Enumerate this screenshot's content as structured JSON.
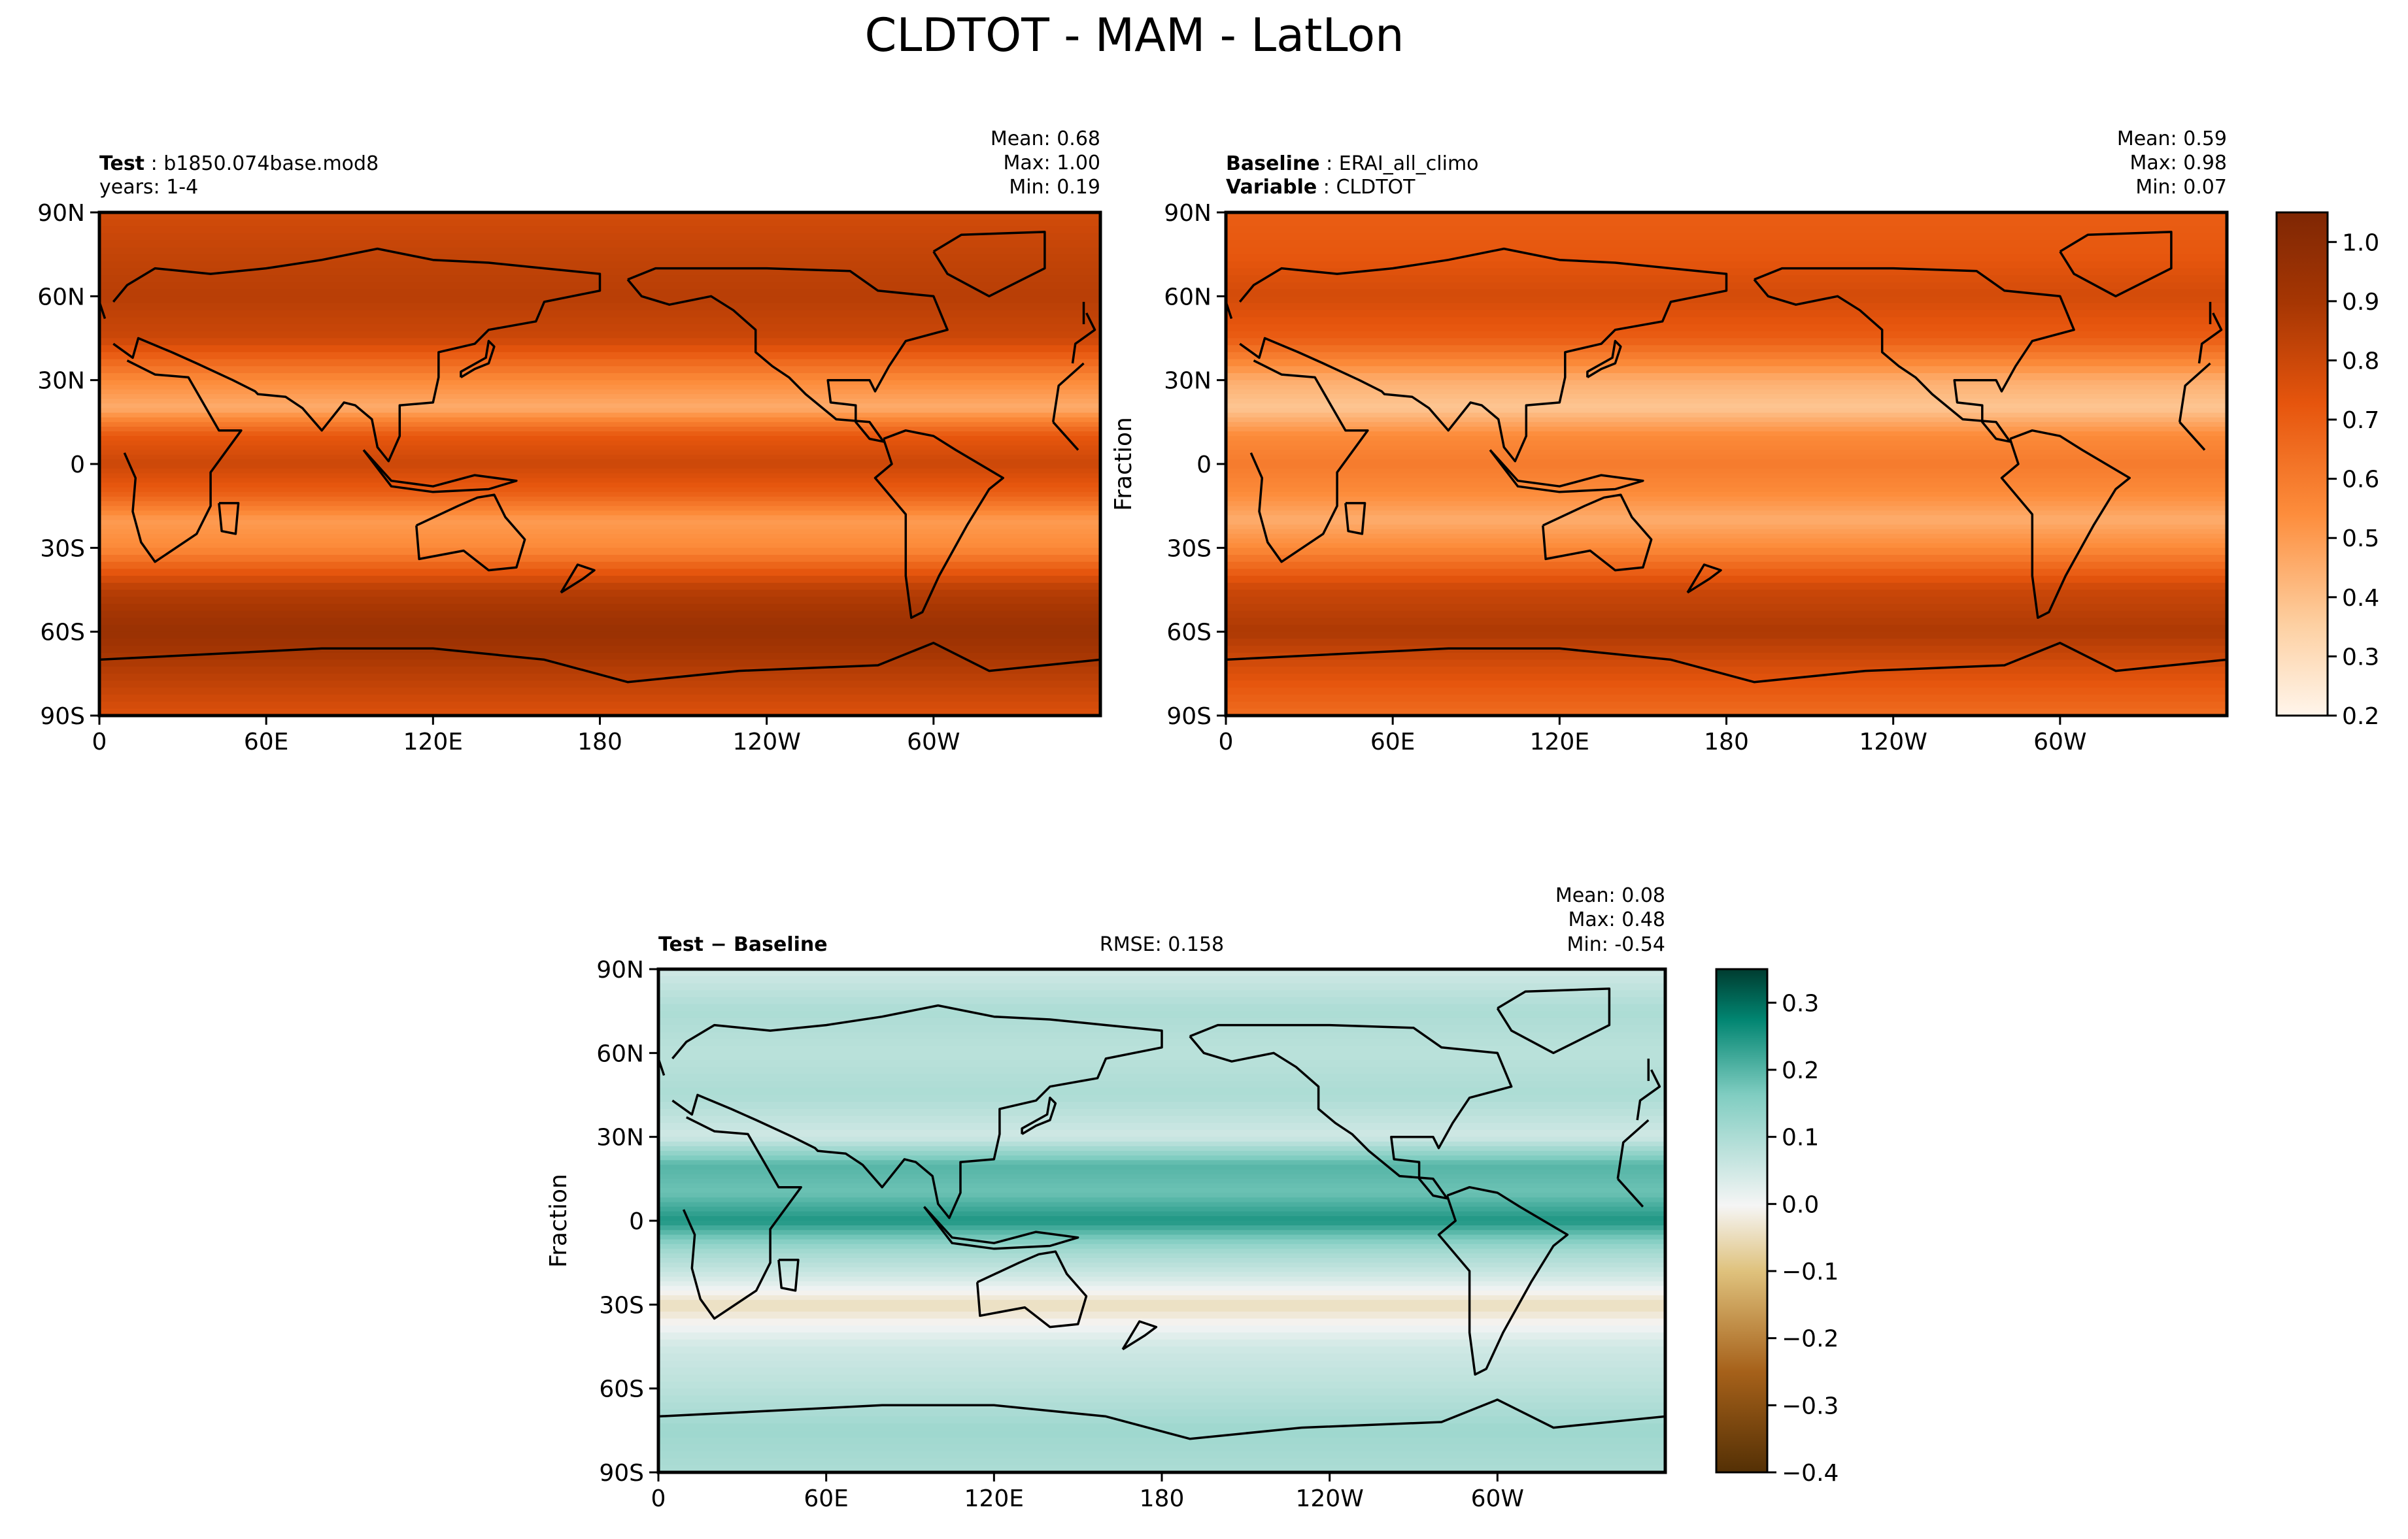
{
  "figure": {
    "title": "CLDTOT - MAM - LatLon"
  },
  "panels": {
    "test": {
      "left_title": "Test",
      "left_value": "b1850.074base.mod8",
      "left_line2": "years: 1-4",
      "stats": {
        "mean": "Mean:  0.68",
        "max": "Max:  1.00",
        "min": "Min:  0.19"
      }
    },
    "baseline": {
      "left_title": "Baseline",
      "left_value": "ERAI_all_climo",
      "left_title2": "Variable",
      "left_value2": "CLDTOT",
      "ylabel": "Fraction",
      "stats": {
        "mean": "Mean:  0.59",
        "max": "Max:  0.98",
        "min": "Min:  0.07"
      }
    },
    "diff": {
      "left_title": "Test − Baseline",
      "center_title": "RMSE: 0.158",
      "ylabel": "Fraction",
      "stats": {
        "mean": "Mean:  0.08",
        "max": "Max:  0.48",
        "min": "Min: -0.54"
      }
    }
  },
  "chart_data": [
    {
      "type": "heatmap",
      "name": "test",
      "x_ticks": [
        "0",
        "60E",
        "120E",
        "180",
        "120W",
        "60W"
      ],
      "y_ticks": [
        "90N",
        "60N",
        "30N",
        "0",
        "30S",
        "60S",
        "90S"
      ],
      "x_range": [
        0,
        360
      ],
      "y_range": [
        -90,
        90
      ],
      "colormap": "Oranges",
      "clim": [
        0.2,
        1.05
      ],
      "zonal_mean_profile": [
        {
          "lat": 90,
          "value": 0.78
        },
        {
          "lat": 75,
          "value": 0.82
        },
        {
          "lat": 60,
          "value": 0.85
        },
        {
          "lat": 45,
          "value": 0.8
        },
        {
          "lat": 30,
          "value": 0.55
        },
        {
          "lat": 20,
          "value": 0.45
        },
        {
          "lat": 10,
          "value": 0.72
        },
        {
          "lat": 0,
          "value": 0.8
        },
        {
          "lat": -10,
          "value": 0.7
        },
        {
          "lat": -20,
          "value": 0.5
        },
        {
          "lat": -30,
          "value": 0.55
        },
        {
          "lat": -45,
          "value": 0.85
        },
        {
          "lat": -60,
          "value": 0.95
        },
        {
          "lat": -75,
          "value": 0.85
        },
        {
          "lat": -90,
          "value": 0.75
        }
      ]
    },
    {
      "type": "heatmap",
      "name": "baseline",
      "x_ticks": [
        "0",
        "60E",
        "120E",
        "180",
        "120W",
        "60W"
      ],
      "y_ticks": [
        "90N",
        "60N",
        "30N",
        "0",
        "30S",
        "60S",
        "90S"
      ],
      "x_range": [
        0,
        360
      ],
      "y_range": [
        -90,
        90
      ],
      "colormap": "Oranges",
      "clim": [
        0.2,
        1.05
      ],
      "colorbar_ticks": [
        1.0,
        0.9,
        0.8,
        0.7,
        0.6,
        0.5,
        0.4,
        0.3,
        0.2
      ],
      "zonal_mean_profile": [
        {
          "lat": 90,
          "value": 0.7
        },
        {
          "lat": 75,
          "value": 0.72
        },
        {
          "lat": 60,
          "value": 0.78
        },
        {
          "lat": 45,
          "value": 0.7
        },
        {
          "lat": 30,
          "value": 0.45
        },
        {
          "lat": 20,
          "value": 0.38
        },
        {
          "lat": 10,
          "value": 0.55
        },
        {
          "lat": 0,
          "value": 0.6
        },
        {
          "lat": -10,
          "value": 0.55
        },
        {
          "lat": -20,
          "value": 0.45
        },
        {
          "lat": -30,
          "value": 0.55
        },
        {
          "lat": -45,
          "value": 0.8
        },
        {
          "lat": -60,
          "value": 0.88
        },
        {
          "lat": -75,
          "value": 0.75
        },
        {
          "lat": -90,
          "value": 0.65
        }
      ]
    },
    {
      "type": "heatmap",
      "name": "difference",
      "x_ticks": [
        "0",
        "60E",
        "120E",
        "180",
        "120W",
        "60W"
      ],
      "y_ticks": [
        "90N",
        "60N",
        "30N",
        "0",
        "30S",
        "60S",
        "90S"
      ],
      "x_range": [
        0,
        360
      ],
      "y_range": [
        -90,
        90
      ],
      "colormap": "BrBG",
      "clim": [
        -0.4,
        0.35
      ],
      "colorbar_ticks": [
        0.3,
        0.2,
        0.1,
        0.0,
        -0.1,
        -0.2,
        -0.3,
        -0.4
      ],
      "zonal_mean_profile": [
        {
          "lat": 90,
          "value": 0.05
        },
        {
          "lat": 75,
          "value": 0.1
        },
        {
          "lat": 60,
          "value": 0.08
        },
        {
          "lat": 45,
          "value": 0.1
        },
        {
          "lat": 30,
          "value": 0.05
        },
        {
          "lat": 20,
          "value": 0.2
        },
        {
          "lat": 10,
          "value": 0.18
        },
        {
          "lat": 0,
          "value": 0.25
        },
        {
          "lat": -10,
          "value": 0.12
        },
        {
          "lat": -20,
          "value": 0.05
        },
        {
          "lat": -30,
          "value": -0.05
        },
        {
          "lat": -45,
          "value": 0.05
        },
        {
          "lat": -60,
          "value": 0.08
        },
        {
          "lat": -75,
          "value": 0.12
        },
        {
          "lat": -90,
          "value": 0.1
        }
      ]
    }
  ]
}
